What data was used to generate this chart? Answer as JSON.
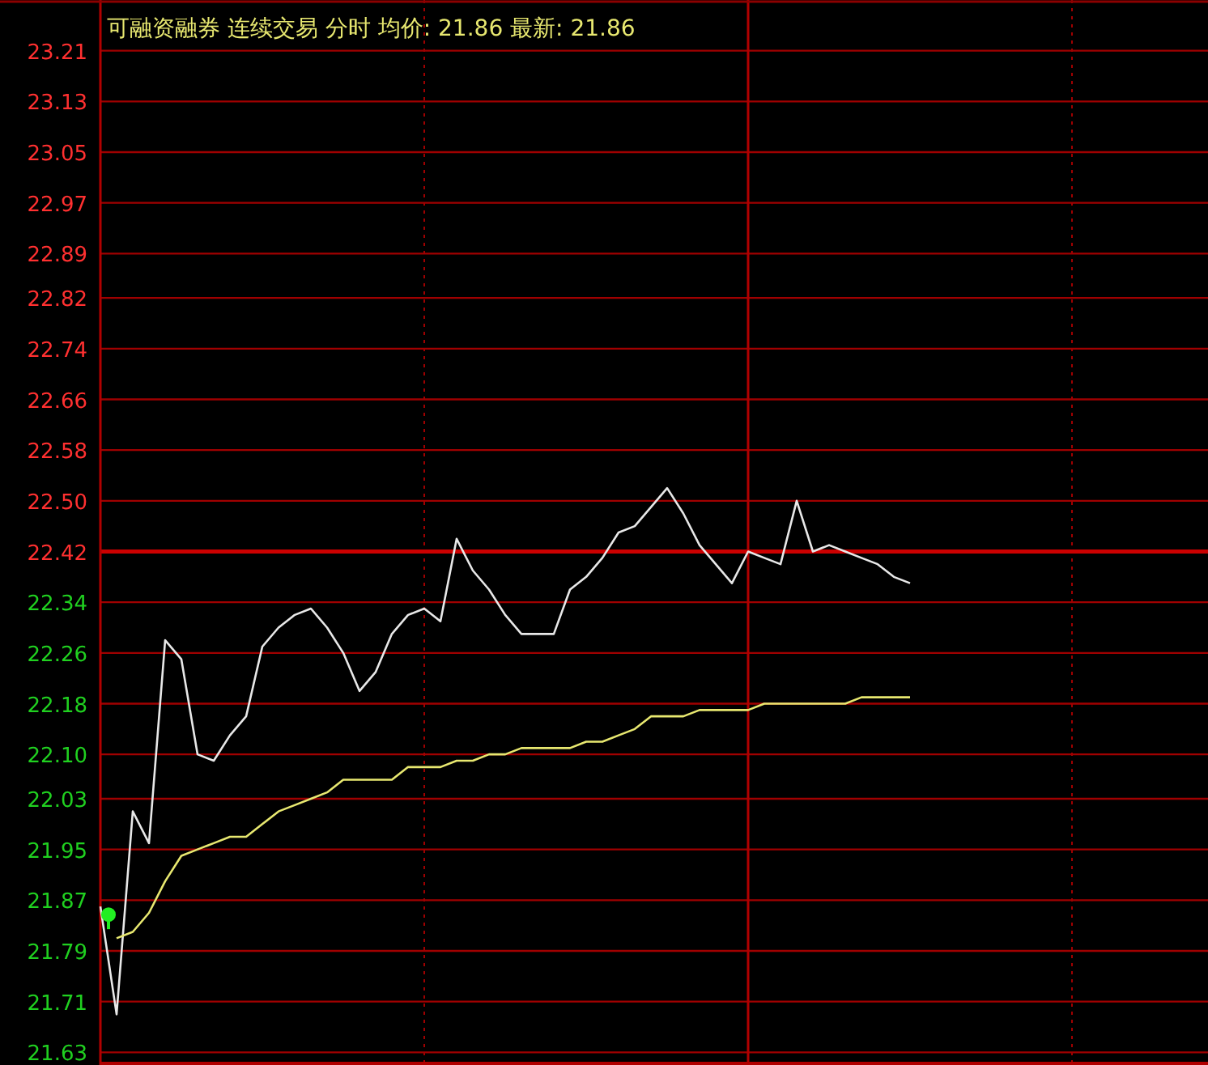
{
  "chart_data": {
    "type": "line",
    "title": "可融资融券 连续交易 分时 均价: 21.86 最新: 21.86",
    "categories": [
      null,
      null,
      null,
      null,
      null,
      null,
      null,
      null,
      null,
      null,
      null,
      null,
      null,
      null,
      null,
      null,
      null,
      null,
      null,
      null,
      null,
      null,
      null,
      null,
      null,
      null,
      null,
      null,
      null,
      null,
      null,
      null,
      null,
      null,
      null,
      null,
      null,
      null,
      null,
      null,
      null,
      null,
      null,
      null,
      null,
      null,
      null,
      null,
      null,
      null,
      null,
      null,
      null,
      null,
      null,
      null,
      null,
      null,
      null,
      null,
      null,
      null,
      null,
      null,
      null,
      null,
      null,
      null,
      null
    ],
    "ylim": [
      21.61,
      23.29
    ],
    "yticks": [
      23.21,
      23.13,
      23.05,
      22.97,
      22.89,
      22.82,
      22.74,
      22.66,
      22.58,
      {
        "value": 22.5,
        "label": "22.50"
      },
      22.42,
      22.34,
      22.26,
      22.18,
      {
        "value": 22.1,
        "label": "22.10"
      },
      22.03,
      21.95,
      21.87,
      21.79,
      21.71,
      21.63
    ],
    "grid": true,
    "line_style": "solid",
    "ref_lines": [
      {
        "axis": "y",
        "value": 22.42,
        "color": "#cc0000"
      }
    ],
    "series": [
      {
        "color": "#e8e8e8",
        "values": [
          21.86,
          21.69,
          22.01,
          21.96,
          22.28,
          22.25,
          22.1,
          22.09,
          22.13,
          22.16,
          22.27,
          22.3,
          22.32,
          22.33,
          22.3,
          22.26,
          22.2,
          22.23,
          22.29,
          22.32,
          22.33,
          22.31,
          22.44,
          22.39,
          22.36,
          22.32,
          22.29,
          22.29,
          22.29,
          22.36,
          22.38,
          22.41,
          22.45,
          22.46,
          22.49,
          22.52,
          22.48,
          22.43,
          22.4,
          22.37,
          22.42,
          22.41,
          22.4,
          22.5,
          22.42,
          22.43,
          22.42,
          22.41,
          22.4,
          22.38,
          22.37,
          null,
          null,
          null,
          null,
          null,
          null,
          null,
          null,
          null,
          null,
          null,
          null,
          null,
          null,
          null,
          null,
          null,
          null
        ]
      },
      {
        "color": "#e8e870",
        "values": [
          null,
          21.81,
          21.82,
          21.85,
          21.9,
          21.94,
          21.95,
          21.96,
          21.97,
          21.97,
          21.99,
          22.01,
          22.02,
          22.03,
          22.04,
          22.06,
          22.06,
          22.06,
          22.06,
          22.08,
          22.08,
          22.08,
          22.09,
          22.09,
          22.1,
          22.1,
          22.11,
          22.11,
          22.11,
          22.11,
          22.12,
          22.12,
          22.13,
          22.14,
          22.16,
          22.16,
          22.16,
          22.17,
          22.17,
          22.17,
          22.17,
          22.18,
          22.18,
          22.18,
          22.18,
          22.18,
          22.18,
          22.19,
          22.19,
          22.19,
          22.19,
          null,
          null,
          null,
          null,
          null,
          null,
          null,
          null,
          null,
          null,
          null,
          null,
          null,
          null,
          null,
          null,
          null,
          null
        ]
      }
    ]
  }
}
